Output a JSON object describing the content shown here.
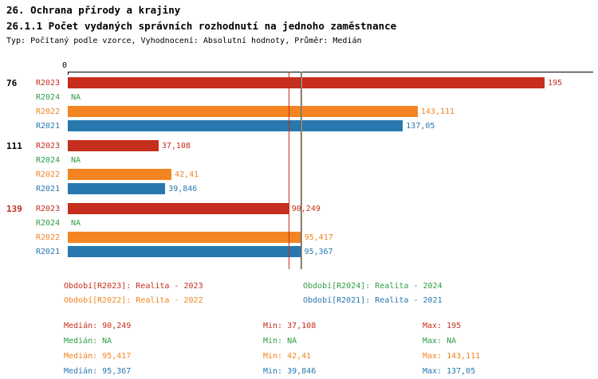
{
  "header": {
    "title": "26. Ochrana přírody a krajiny",
    "subtitle": "26.1.1 Počet vydaných správních rozhodnutí na jednoho zaměstnance",
    "meta": "Typ: Počítaný podle vzorce, Vyhodnocení: Absolutní hodnoty, Průměr: Medián"
  },
  "colors": {
    "R2023": "#c62e1d",
    "R2024": "#2e9e44",
    "R2022": "#f28522",
    "R2021": "#2878af",
    "group_label_default": "#000000",
    "group_label_highlight": "#c62e1d",
    "axis": "#000000"
  },
  "chart_data": {
    "type": "bar",
    "orientation": "horizontal",
    "axis_origin_label": "0",
    "xlim": [
      0,
      195
    ],
    "grid": false,
    "legend_position": "bottom",
    "series_order": [
      "R2023",
      "R2024",
      "R2022",
      "R2021"
    ],
    "groups": [
      {
        "label": "76",
        "highlight": false,
        "bars": [
          {
            "series": "R2023",
            "value": 195,
            "display": "195"
          },
          {
            "series": "R2024",
            "value": null,
            "display": "NA"
          },
          {
            "series": "R2022",
            "value": 143.111,
            "display": "143,111"
          },
          {
            "series": "R2021",
            "value": 137.05,
            "display": "137,05"
          }
        ]
      },
      {
        "label": "111",
        "highlight": false,
        "bars": [
          {
            "series": "R2023",
            "value": 37.108,
            "display": "37,108"
          },
          {
            "series": "R2024",
            "value": null,
            "display": "NA"
          },
          {
            "series": "R2022",
            "value": 42.41,
            "display": "42,41"
          },
          {
            "series": "R2021",
            "value": 39.846,
            "display": "39,846"
          }
        ]
      },
      {
        "label": "139",
        "highlight": true,
        "bars": [
          {
            "series": "R2023",
            "value": 90.249,
            "display": "90,249"
          },
          {
            "series": "R2024",
            "value": null,
            "display": "NA"
          },
          {
            "series": "R2022",
            "value": 95.417,
            "display": "95,417"
          },
          {
            "series": "R2021",
            "value": 95.367,
            "display": "95,367"
          }
        ]
      }
    ],
    "median_lines": [
      {
        "series": "R2023",
        "value": 90.249
      },
      {
        "series": "R2022",
        "value": 95.417
      },
      {
        "series": "R2021",
        "value": 95.367
      }
    ],
    "legend": [
      {
        "series": "R2023",
        "label": "Období[R2023]: Realita - 2023"
      },
      {
        "series": "R2024",
        "label": "Období[R2024]: Realita - 2024"
      },
      {
        "series": "R2022",
        "label": "Období[R2022]: Realita - 2022"
      },
      {
        "series": "R2021",
        "label": "Období[R2021]: Realita - 2021"
      }
    ],
    "stats_labels": {
      "median": "Medián",
      "min": "Min",
      "max": "Max"
    },
    "stats": [
      {
        "series": "R2023",
        "median": "90,249",
        "min": "37,108",
        "max": "195"
      },
      {
        "series": "R2024",
        "median": "NA",
        "min": "NA",
        "max": "NA"
      },
      {
        "series": "R2022",
        "median": "95,417",
        "min": "42,41",
        "max": "143,111"
      },
      {
        "series": "R2021",
        "median": "95,367",
        "min": "39,846",
        "max": "137,05"
      }
    ]
  }
}
